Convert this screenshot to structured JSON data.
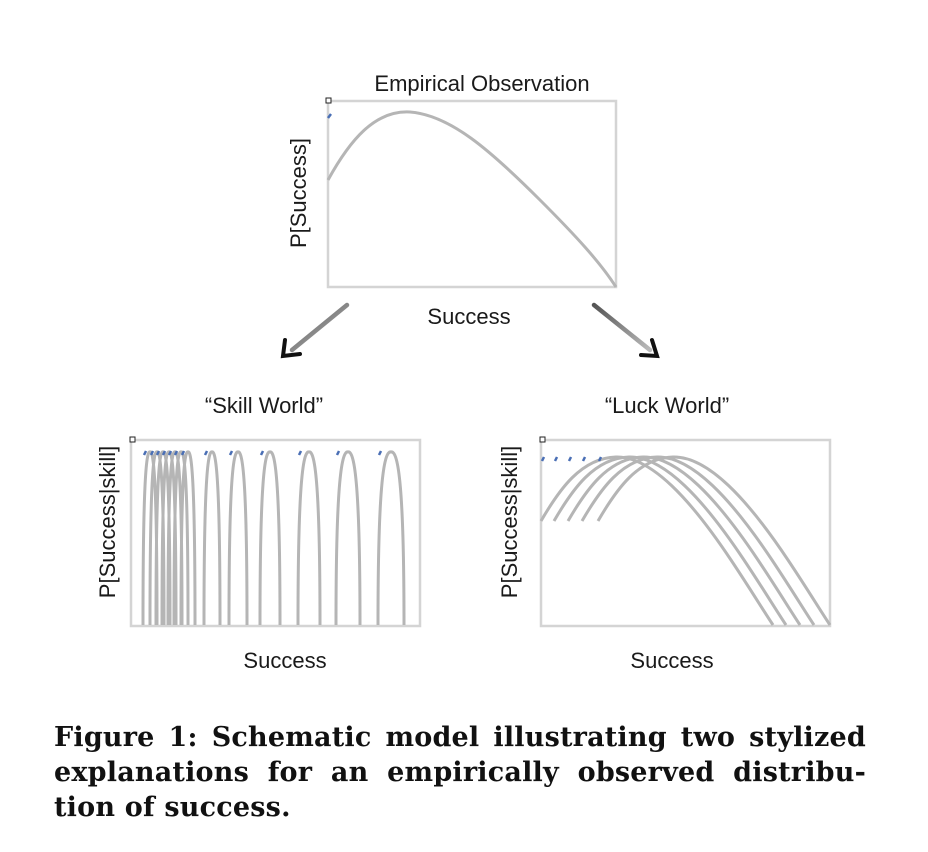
{
  "top_panel": {
    "title": "Empirical Observation",
    "xlabel": "Success",
    "ylabel": "P[Success]"
  },
  "skill_panel": {
    "title": "“Skill World”",
    "xlabel": "Success",
    "ylabel": "P[Success|skill]"
  },
  "luck_panel": {
    "title": "“Luck World”",
    "xlabel": "Success",
    "ylabel": "P[Success|skill]"
  },
  "caption": {
    "line1": "Figure 1: Schematic model illustrating two stylized",
    "line2": "explanations for an empirically observed distribu-",
    "line3": "tion of success."
  },
  "colors": {
    "curve": "#b5b5b5",
    "frame": "#d4d4d4",
    "marker": "#4a6fb5",
    "arrow_head": "#111111"
  }
}
